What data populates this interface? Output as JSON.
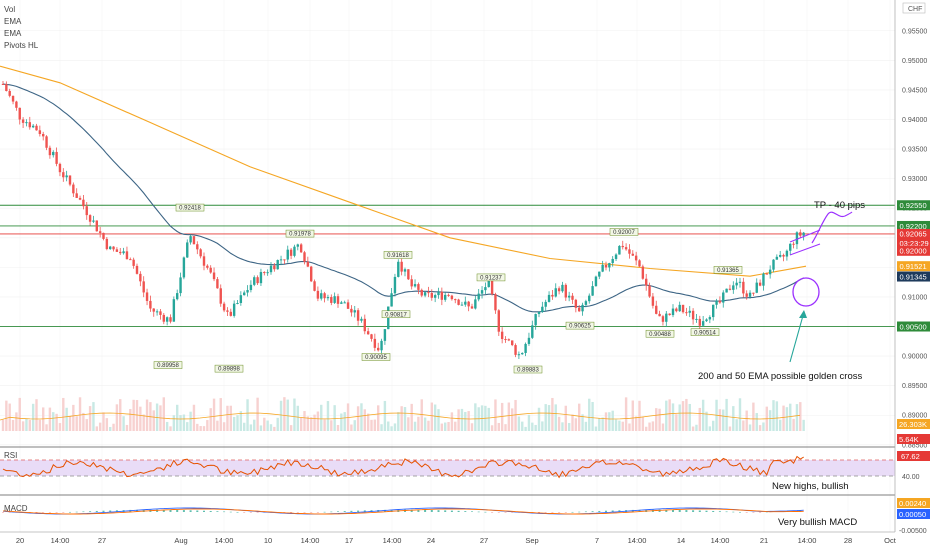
{
  "legend": [
    "Vol",
    "EMA",
    "EMA",
    "Pivots HL"
  ],
  "currency": "CHF",
  "colors": {
    "up": "#26a69a",
    "down": "#ef5350",
    "ema50": "#3d6585",
    "ema200": "#f5a623",
    "resistance": "#2e8b3a",
    "current": "#e53935",
    "rsi": "#e65100",
    "annotation": "#9b30ff",
    "macd": "#2962ff",
    "signal": "#ff6d00"
  },
  "chart_data": {
    "type": "candlestick",
    "y_axis": {
      "ticks": [
        "0.95500",
        "0.95000",
        "0.94500",
        "0.94000",
        "0.93500",
        "0.93000",
        "0.92500",
        "0.92000",
        "0.91500",
        "0.91000",
        "0.90500",
        "0.90000",
        "0.89500",
        "0.89000",
        "0.88500"
      ],
      "ylim": [
        0.8848,
        0.9602
      ]
    },
    "x_axis": {
      "ticks": [
        "20",
        "14:00",
        "27",
        "Aug",
        "14:00",
        "10",
        "14:00",
        "17",
        "14:00",
        "24",
        "27",
        "Sep",
        "7",
        "14:00",
        "14",
        "14:00",
        "21",
        "14:00",
        "28",
        "Oct"
      ]
    },
    "horizontal_levels": [
      {
        "value": 0.9255,
        "label": "0.92550",
        "color": "#2e8b3a"
      },
      {
        "value": 0.922,
        "label": "0.92200",
        "color": "#2e8b3a"
      },
      {
        "value": 0.92065,
        "label": "0.92065",
        "color": "#e53935"
      },
      {
        "value": 0.905,
        "label": "0.90500",
        "color": "#2e8b3a"
      }
    ],
    "price_badges": [
      {
        "value": 0.9255,
        "label": "0.92550",
        "color": "#2e8b3a"
      },
      {
        "value": 0.922,
        "label": "0.92200",
        "color": "#2e8b3a"
      },
      {
        "value": 0.92065,
        "label": "0.92065",
        "color": "#e53935"
      },
      {
        "value": 0.9191,
        "label": "03:23:29",
        "color": "#e53935"
      },
      {
        "value": 0.9178,
        "label": "0.92000",
        "color": "#e53935"
      },
      {
        "value": 0.9152,
        "label": "0.91521",
        "color": "#f5a623"
      },
      {
        "value": 0.91345,
        "label": "0.91345",
        "color": "#1e3a5c"
      },
      {
        "value": 0.905,
        "label": "0.90500",
        "color": "#2e8b3a"
      }
    ],
    "pivots": [
      {
        "label": "0.92418",
        "position": "high"
      },
      {
        "label": "0.89958",
        "position": "low"
      },
      {
        "label": "0.89898",
        "position": "low"
      },
      {
        "label": "0.91978",
        "position": "high"
      },
      {
        "label": "0.90817",
        "position": "low"
      },
      {
        "label": "0.90095",
        "position": "low"
      },
      {
        "label": "0.91618",
        "position": "high"
      },
      {
        "label": "0.91237",
        "position": "high"
      },
      {
        "label": "0.90625",
        "position": "low"
      },
      {
        "label": "0.89883",
        "position": "low"
      },
      {
        "label": "0.92007",
        "position": "high"
      },
      {
        "label": "0.90488",
        "position": "low"
      },
      {
        "label": "0.91365",
        "position": "high"
      },
      {
        "label": "0.90514",
        "position": "low"
      }
    ],
    "volume_scale": {
      "ema_value": "26.303K",
      "last_value": "5.64K"
    },
    "rsi": {
      "label": "RSI",
      "value": "67.62",
      "tick": "40.00"
    },
    "macd": {
      "label": "MACD",
      "value1": "0.00240",
      "value2": "0.00050",
      "tick": "-0.00500"
    }
  },
  "annotations": {
    "tp": "TP - 40 pips",
    "golden_cross": "200 and 50 EMA possible golden cross",
    "rsi_note": "New highs, bullish",
    "macd_note": "Very bullish MACD"
  }
}
